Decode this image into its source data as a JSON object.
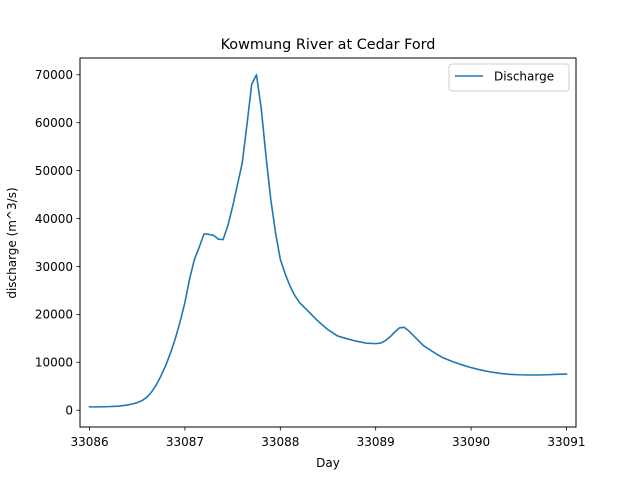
{
  "chart_data": {
    "type": "line",
    "title": "Kowmung River at Cedar Ford",
    "xlabel": "Day",
    "ylabel": "discharge (m^3/s)",
    "xlim": [
      33085.9,
      33091.1
    ],
    "ylim": [
      -3500,
      73500
    ],
    "xticks": [
      33086,
      33087,
      33088,
      33089,
      33090,
      33091
    ],
    "yticks": [
      0,
      10000,
      20000,
      30000,
      40000,
      50000,
      60000,
      70000
    ],
    "grid": false,
    "legend_position": "top-right",
    "series": [
      {
        "name": "Discharge",
        "color": "#1f77b4",
        "x": [
          33086.0,
          33086.1,
          33086.2,
          33086.3,
          33086.4,
          33086.45,
          33086.5,
          33086.55,
          33086.6,
          33086.65,
          33086.7,
          33086.75,
          33086.8,
          33086.85,
          33086.9,
          33086.95,
          33087.0,
          33087.05,
          33087.1,
          33087.15,
          33087.2,
          33087.25,
          33087.3,
          33087.35,
          33087.4,
          33087.45,
          33087.5,
          33087.55,
          33087.6,
          33087.65,
          33087.7,
          33087.75,
          33087.8,
          33087.85,
          33087.9,
          33087.95,
          33088.0,
          33088.05,
          33088.1,
          33088.15,
          33088.2,
          33088.3,
          33088.4,
          33088.5,
          33088.6,
          33088.7,
          33088.8,
          33088.9,
          33089.0,
          33089.05,
          33089.1,
          33089.15,
          33089.2,
          33089.25,
          33089.3,
          33089.35,
          33089.4,
          33089.5,
          33089.6,
          33089.7,
          33089.8,
          33089.9,
          33090.0,
          33090.1,
          33090.2,
          33090.3,
          33090.4,
          33090.5,
          33090.6,
          33090.7,
          33090.8,
          33090.9,
          33091.0
        ],
        "y": [
          700,
          700,
          750,
          850,
          1100,
          1300,
          1600,
          2000,
          2700,
          3800,
          5300,
          7200,
          9400,
          12000,
          15000,
          18500,
          22500,
          27500,
          31500,
          34000,
          36800,
          36700,
          36500,
          35700,
          35600,
          38500,
          42500,
          47000,
          51500,
          59500,
          68000,
          70000,
          63000,
          53000,
          44000,
          37000,
          31500,
          28500,
          26000,
          24000,
          22500,
          20500,
          18500,
          16800,
          15500,
          14900,
          14400,
          14000,
          13900,
          14000,
          14500,
          15300,
          16300,
          17200,
          17300,
          16500,
          15500,
          13500,
          12200,
          11000,
          10200,
          9500,
          8900,
          8400,
          8000,
          7700,
          7500,
          7400,
          7350,
          7350,
          7400,
          7500,
          7550
        ]
      }
    ]
  }
}
